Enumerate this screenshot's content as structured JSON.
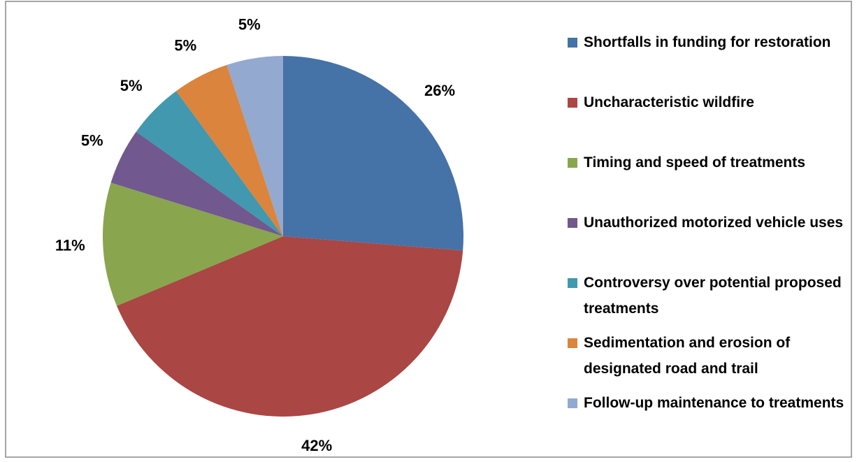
{
  "chart_data": {
    "type": "pie",
    "categories": [
      "Shortfalls in funding for restoration",
      "Uncharacteristic wildfire",
      "Timing and speed of treatments",
      "Unauthorized motorized vehicle uses",
      "Controversy over potential proposed treatments",
      "Sedimentation and erosion of designated road and trail",
      "Follow-up maintenance to treatments"
    ],
    "values": [
      26,
      42,
      11,
      5,
      5,
      5,
      5
    ],
    "value_labels": [
      "26%",
      "42%",
      "11%",
      "5%",
      "5%",
      "5%",
      "5%"
    ],
    "colors": [
      "#4572a7",
      "#aa4643",
      "#89a54e",
      "#71588f",
      "#4198af",
      "#db843d",
      "#93a9cf"
    ],
    "legend": "right"
  }
}
